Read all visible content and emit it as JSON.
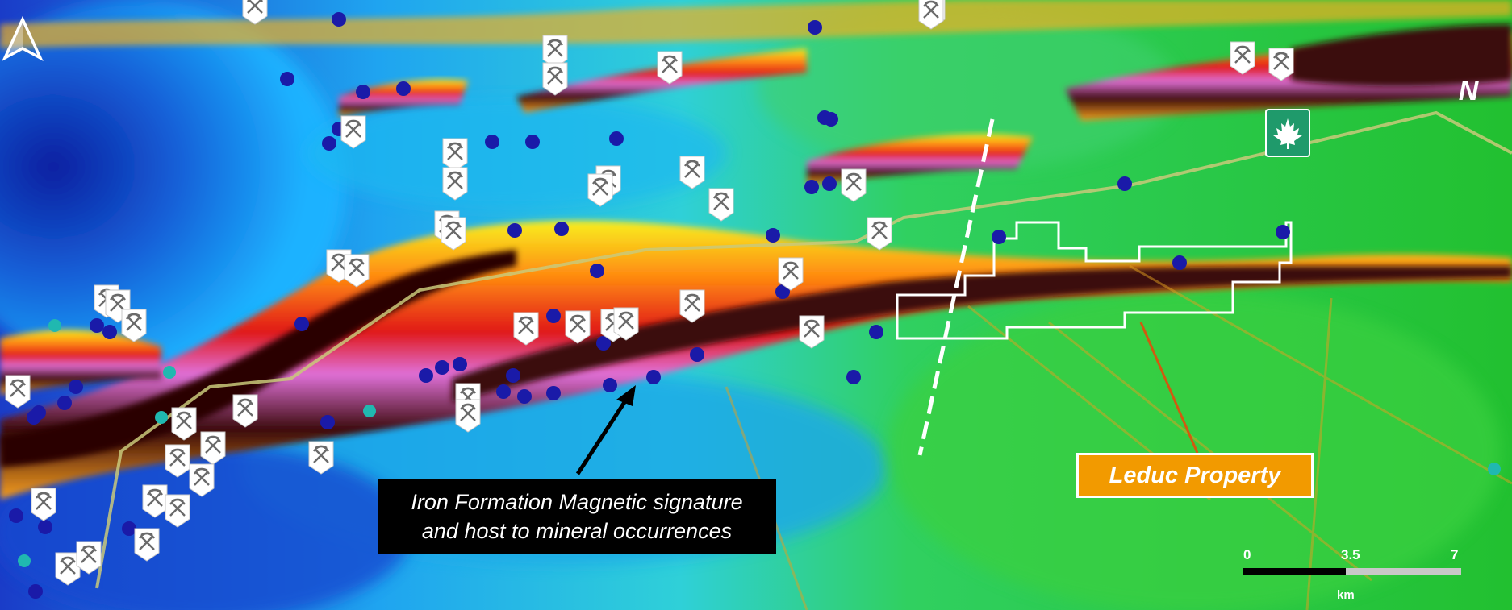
{
  "map": {
    "callout": {
      "line1": "Iron Formation Magnetic signature",
      "line2": "and host to mineral occurrences"
    },
    "property_label": "Leduc Property",
    "north_arrow": "N",
    "scale": {
      "ticks": [
        "0",
        "3.5",
        "7"
      ],
      "unit": "km"
    },
    "icons": {
      "mine_marker": "pickaxe-icon",
      "occurrence_dot": "circle-dot-icon",
      "highway_shield": "maple-leaf-icon"
    },
    "colors": {
      "property_outline": "#ffffff",
      "label_fill": "#f29a00",
      "occurrence_dot": "#1a1aa8",
      "leader_line": "#d05a10"
    }
  }
}
